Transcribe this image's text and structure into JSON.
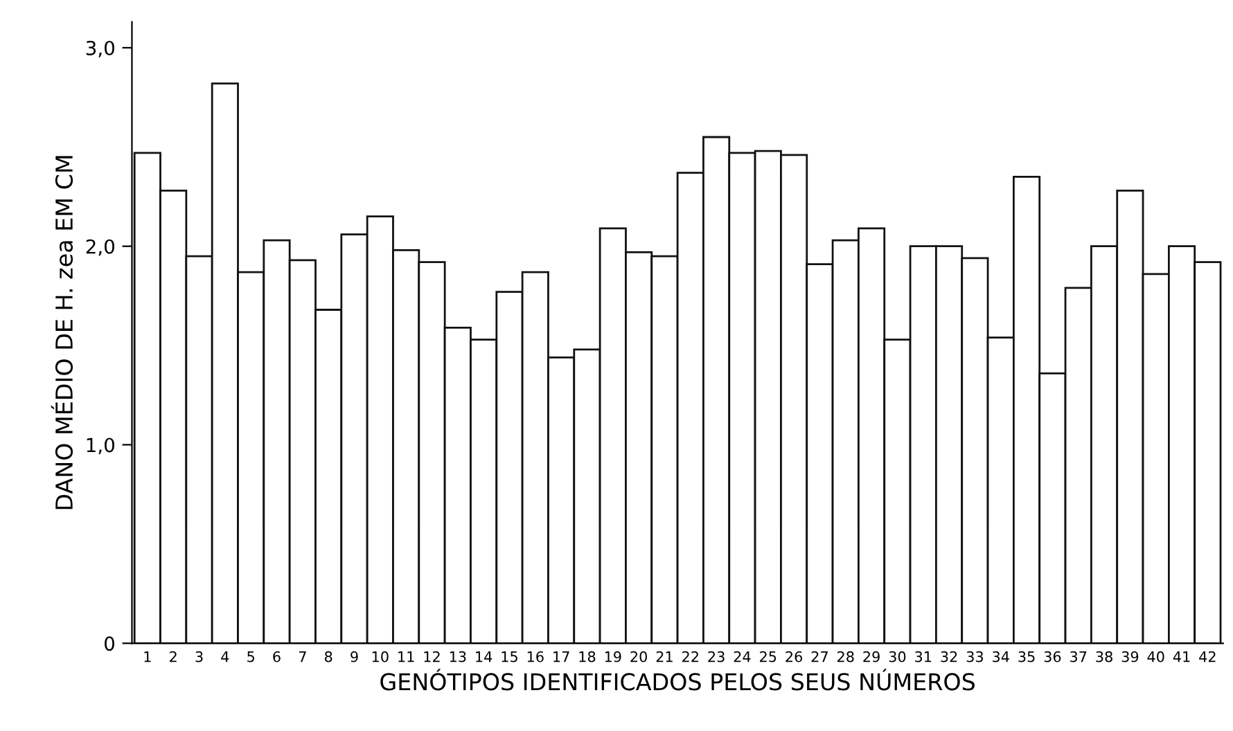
{
  "chart_data": {
    "type": "bar",
    "xlabel": "GENÓTIPOS IDENTIFICADOS PELOS SEUS NÚMEROS",
    "ylabel": "DANO MÉDIO DE H. zea EM CM",
    "categories": [
      "1",
      "2",
      "3",
      "4",
      "5",
      "6",
      "7",
      "8",
      "9",
      "10",
      "11",
      "12",
      "13",
      "14",
      "15",
      "16",
      "17",
      "18",
      "19",
      "20",
      "21",
      "22",
      "23",
      "24",
      "25",
      "26",
      "27",
      "28",
      "29",
      "30",
      "31",
      "32",
      "33",
      "34",
      "35",
      "36",
      "37",
      "38",
      "39",
      "40",
      "41",
      "42"
    ],
    "values": [
      2.47,
      2.28,
      1.95,
      2.82,
      1.87,
      2.03,
      1.93,
      1.68,
      2.06,
      2.15,
      1.98,
      1.92,
      1.59,
      1.53,
      1.77,
      1.87,
      1.44,
      1.48,
      2.09,
      1.97,
      1.95,
      2.37,
      2.55,
      2.47,
      2.48,
      2.46,
      1.91,
      2.03,
      2.09,
      1.53,
      2.0,
      2.0,
      1.94,
      1.54,
      2.35,
      1.36,
      1.79,
      2.0,
      2.28,
      1.86,
      2.0,
      1.92
    ],
    "color": "#ffffff",
    "ylim": [
      0,
      3.13
    ],
    "yticks": [
      {
        "value": 0,
        "label": "0"
      },
      {
        "value": 1,
        "label": "1,0"
      },
      {
        "value": 2,
        "label": "2,0"
      },
      {
        "value": 3,
        "label": "3,0"
      }
    ],
    "grid": false,
    "legend": false
  }
}
